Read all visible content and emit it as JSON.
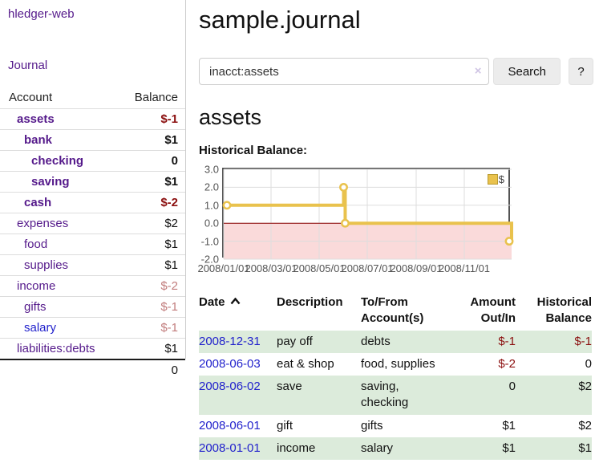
{
  "colors": {
    "purple": "#551a8b",
    "blue": "#2222cc",
    "neg": "#8b0f0f",
    "neg-light": "#c17c7c",
    "row-green": "#dcebdb",
    "gold": "#e9c24d"
  },
  "sidebar": {
    "brand": "hledger-web",
    "nav_journal": "Journal",
    "accounts_header": {
      "account": "Account",
      "balance": "Balance"
    },
    "accounts": [
      {
        "name": "assets",
        "depth": 1,
        "bold": true,
        "balance": "$-1",
        "balance_style": "neg"
      },
      {
        "name": "bank",
        "depth": 2,
        "bold": true,
        "balance": "$1",
        "balance_style": "pos"
      },
      {
        "name": "checking",
        "depth": 3,
        "bold": true,
        "balance": "0",
        "balance_style": "pos"
      },
      {
        "name": "saving",
        "depth": 3,
        "bold": true,
        "balance": "$1",
        "balance_style": "pos"
      },
      {
        "name": "cash",
        "depth": 2,
        "bold": true,
        "balance": "$-2",
        "balance_style": "neg"
      },
      {
        "name": "expenses",
        "depth": 1,
        "bold": false,
        "balance": "$2",
        "balance_style": "pos"
      },
      {
        "name": "food",
        "depth": 2,
        "bold": false,
        "balance": "$1",
        "balance_style": "pos"
      },
      {
        "name": "supplies",
        "depth": 2,
        "bold": false,
        "balance": "$1",
        "balance_style": "pos"
      },
      {
        "name": "income",
        "depth": 1,
        "bold": false,
        "balance": "$-2",
        "balance_style": "neg-light"
      },
      {
        "name": "gifts",
        "depth": 2,
        "bold": false,
        "balance": "$-1",
        "balance_style": "neg-light"
      },
      {
        "name": "salary",
        "depth": 2,
        "bold": false,
        "link_style": "blue",
        "balance": "$-1",
        "balance_style": "neg-light"
      },
      {
        "name": "liabilities:debts",
        "depth": 1,
        "bold": false,
        "balance": "$1",
        "balance_style": "pos"
      }
    ],
    "total": "0"
  },
  "main": {
    "title": "sample.journal",
    "search": {
      "value": "inacct:assets",
      "clear_icon": "×",
      "button": "Search",
      "help": "?"
    },
    "account_heading": "assets",
    "chart_label": "Historical Balance:"
  },
  "chart_data": {
    "type": "line",
    "step": true,
    "title": "Historical Balance",
    "legend": [
      {
        "label": "$",
        "color": "#e9c24d"
      }
    ],
    "x_ticks": [
      "2008/01/01",
      "2008/03/01",
      "2008/05/01",
      "2008/07/01",
      "2008/09/01",
      "2008/11/01"
    ],
    "y_ticks": [
      "3.0",
      "2.0",
      "1.0",
      "0.0",
      "-1.0",
      "-2.0"
    ],
    "ylim": [
      -2,
      3
    ],
    "x_range": [
      "2008-01-01",
      "2008-12-31"
    ],
    "grid": true,
    "legend_position": "top-right",
    "series": [
      {
        "name": "$",
        "points": [
          [
            "2008-01-01",
            1
          ],
          [
            "2008-06-01",
            2
          ],
          [
            "2008-06-03",
            0
          ],
          [
            "2008-12-31",
            -1
          ]
        ]
      }
    ],
    "negative_region_fill": "#fadada",
    "zero_line_color": "#8b0000"
  },
  "register": {
    "headers": {
      "date": "Date",
      "description": "Description",
      "accounts": "To/From Account(s)",
      "amount": "Amount Out/In",
      "balance": "Historical Balance"
    },
    "sort_icon": "chevron-up",
    "rows": [
      {
        "date": "2008-12-31",
        "description": "pay off",
        "accounts": "debts",
        "amount": "$-1",
        "amount_style": "neg",
        "balance": "$-1",
        "balance_style": "neg",
        "shaded": true
      },
      {
        "date": "2008-06-03",
        "description": "eat & shop",
        "accounts": "food, supplies",
        "amount": "$-2",
        "amount_style": "neg",
        "balance": "0",
        "balance_style": "pos",
        "shaded": false
      },
      {
        "date": "2008-06-02",
        "description": "save",
        "accounts": "saving, checking",
        "amount": "0",
        "amount_style": "pos",
        "balance": "$2",
        "balance_style": "pos",
        "shaded": true
      },
      {
        "date": "2008-06-01",
        "description": "gift",
        "accounts": "gifts",
        "amount": "$1",
        "amount_style": "pos",
        "balance": "$2",
        "balance_style": "pos",
        "shaded": false
      },
      {
        "date": "2008-01-01",
        "description": "income",
        "accounts": "salary",
        "amount": "$1",
        "amount_style": "pos",
        "balance": "$1",
        "balance_style": "pos",
        "shaded": true
      }
    ]
  }
}
